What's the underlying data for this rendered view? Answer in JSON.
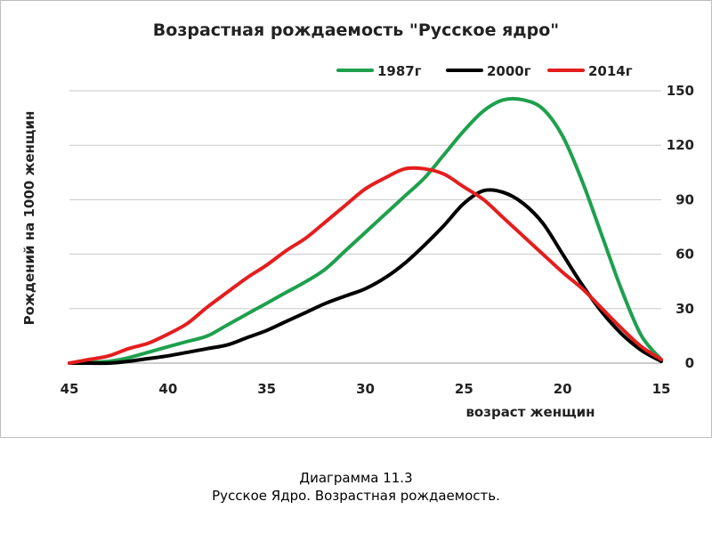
{
  "chart_data": {
    "type": "line",
    "title": "Возрастная рождаемость \"Русское ядро\"",
    "xlabel": "возраст женщин",
    "ylabel": "Рождений на 1000 женщин",
    "x_ticks": [
      45,
      40,
      35,
      30,
      25,
      20,
      15
    ],
    "y_ticks": [
      0,
      30,
      60,
      90,
      120,
      150
    ],
    "xlim": [
      45,
      15
    ],
    "ylim": [
      0,
      150
    ],
    "x_reversed": true,
    "y_axis_side": "right",
    "grid": "horizontal",
    "legend_position": "top",
    "series": [
      {
        "name": "1987г",
        "color": "#1ea04d",
        "x": [
          45,
          44,
          43,
          42,
          41,
          40,
          39,
          38,
          37,
          36,
          35,
          34,
          33,
          32,
          31,
          30,
          29,
          28,
          27,
          26,
          25,
          24,
          23,
          22,
          21,
          20,
          19,
          18,
          17,
          16,
          15
        ],
        "y": [
          0,
          0.5,
          1,
          3,
          6,
          9,
          12,
          15,
          21,
          27,
          33,
          39,
          45,
          52,
          62,
          72,
          82,
          92,
          102,
          115,
          128,
          139,
          145,
          145,
          140,
          125,
          100,
          70,
          40,
          15,
          2
        ]
      },
      {
        "name": "2000г",
        "color": "#000000",
        "x": [
          45,
          44,
          43,
          42,
          41,
          40,
          39,
          38,
          37,
          36,
          35,
          34,
          33,
          32,
          31,
          30,
          29,
          28,
          27,
          26,
          25,
          24,
          23,
          22,
          21,
          20,
          19,
          18,
          17,
          16,
          15
        ],
        "y": [
          0,
          0,
          0,
          1,
          2.5,
          4,
          6,
          8,
          10,
          14,
          18,
          23,
          28,
          33,
          37,
          41,
          47,
          55,
          65,
          76,
          88,
          95,
          94,
          88,
          77,
          60,
          43,
          28,
          16,
          7,
          1
        ]
      },
      {
        "name": "2014г",
        "color": "#e41e1e",
        "x": [
          45,
          44,
          43,
          42,
          41,
          40,
          39,
          38,
          37,
          36,
          35,
          34,
          33,
          32,
          31,
          30,
          29,
          28,
          27,
          26,
          25,
          24,
          23,
          22,
          21,
          20,
          19,
          18,
          17,
          16,
          15
        ],
        "y": [
          0,
          2,
          4,
          8,
          11,
          16,
          22,
          31,
          39,
          47,
          54,
          62,
          69,
          78,
          87,
          96,
          102,
          107,
          107,
          104,
          97,
          90,
          80,
          70,
          60,
          50,
          41,
          30,
          19,
          9,
          2
        ]
      }
    ]
  },
  "caption": {
    "line1": "Диаграмма 11.3",
    "line2": "Русское Ядро. Возрастная рождаемость."
  }
}
